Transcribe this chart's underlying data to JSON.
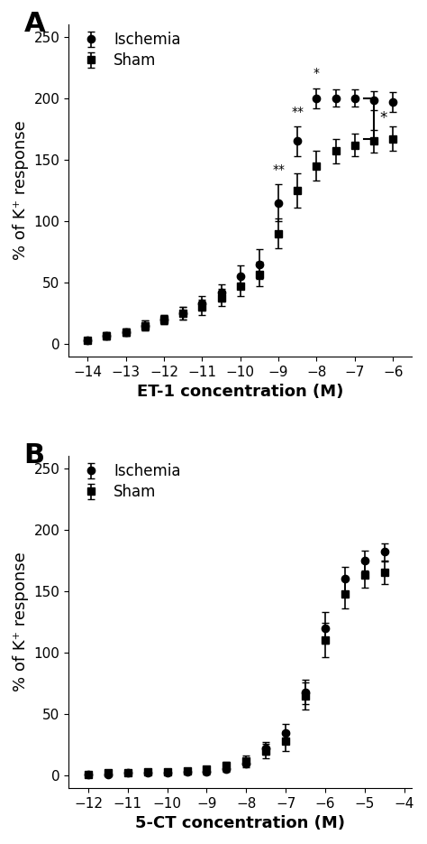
{
  "panel_A": {
    "xlabel": "ET-1 concentration (M)",
    "ylabel": "% of K⁺ response",
    "xlim": [
      -14.5,
      -5.5
    ],
    "ylim": [
      -10,
      260
    ],
    "xticks": [
      -14,
      -13,
      -12,
      -11,
      -10,
      -9,
      -8,
      -7,
      -6
    ],
    "yticks": [
      0,
      50,
      100,
      150,
      200,
      250
    ],
    "ischemia_x": [
      -14,
      -13.5,
      -13,
      -12.5,
      -12,
      -11.5,
      -11,
      -10.5,
      -10,
      -9.5,
      -9,
      -8.5,
      -8,
      -7.5,
      -7,
      -6.5,
      -6
    ],
    "ischemia_y": [
      3,
      7,
      10,
      15,
      20,
      25,
      33,
      42,
      55,
      65,
      115,
      165,
      200,
      200,
      200,
      198,
      197
    ],
    "ischemia_yerr": [
      2,
      3,
      3,
      4,
      4,
      5,
      6,
      7,
      9,
      12,
      15,
      12,
      8,
      7,
      7,
      8,
      8
    ],
    "sham_x": [
      -14,
      -13.5,
      -13,
      -12.5,
      -12,
      -11.5,
      -11,
      -10.5,
      -10,
      -9.5,
      -9,
      -8.5,
      -8,
      -7.5,
      -7,
      -6.5,
      -6
    ],
    "sham_y": [
      3,
      7,
      10,
      15,
      20,
      25,
      30,
      38,
      47,
      57,
      90,
      125,
      145,
      157,
      162,
      165,
      167
    ],
    "sham_yerr": [
      2,
      3,
      3,
      4,
      4,
      5,
      6,
      7,
      8,
      10,
      12,
      14,
      12,
      10,
      9,
      9,
      10
    ],
    "star_positions": [
      [
        -9,
        "**"
      ],
      [
        -8.5,
        "**"
      ],
      [
        -8,
        "*"
      ]
    ],
    "bracket_x1": -7.3,
    "bracket_x2": -6.3,
    "bracket_y_isch": 200,
    "bracket_y_sham": 167,
    "bracket_label": "*"
  },
  "panel_B": {
    "xlabel": "5-CT concentration (M)",
    "ylabel": "% of K⁺ response",
    "xlim": [
      -12.5,
      -3.8
    ],
    "ylim": [
      -10,
      260
    ],
    "xticks": [
      -12,
      -11,
      -10,
      -9,
      -8,
      -7,
      -6,
      -5,
      -4
    ],
    "yticks": [
      0,
      50,
      100,
      150,
      200,
      250
    ],
    "ischemia_x": [
      -12,
      -11.5,
      -11,
      -10.5,
      -10,
      -9.5,
      -9,
      -8.5,
      -8,
      -7.5,
      -7,
      -6.5,
      -6,
      -5.5,
      -5,
      -4.5
    ],
    "ischemia_y": [
      1,
      1,
      2,
      2,
      2,
      3,
      3,
      5,
      10,
      22,
      35,
      68,
      120,
      160,
      175,
      182
    ],
    "ischemia_yerr": [
      1,
      1,
      1,
      1,
      1,
      1,
      2,
      2,
      3,
      5,
      7,
      10,
      13,
      10,
      8,
      7
    ],
    "sham_x": [
      -12,
      -11.5,
      -11,
      -10.5,
      -10,
      -9.5,
      -9,
      -8.5,
      -8,
      -7.5,
      -7,
      -6.5,
      -6,
      -5.5,
      -5,
      -4.5
    ],
    "sham_y": [
      1,
      2,
      2,
      3,
      3,
      4,
      5,
      8,
      12,
      20,
      28,
      65,
      110,
      148,
      163,
      165
    ],
    "sham_yerr": [
      1,
      1,
      1,
      1,
      2,
      2,
      2,
      3,
      4,
      6,
      8,
      11,
      14,
      12,
      10,
      9
    ]
  },
  "panel_label_fontsize": 22,
  "legend_fontsize": 12,
  "axis_label_fontsize": 13,
  "tick_fontsize": 11,
  "line_color": "#000000",
  "marker_circle": "o",
  "marker_square": "s",
  "markersize": 6,
  "linewidth": 1.6,
  "capsize": 3,
  "elinewidth": 1.2,
  "markerfacecolor": "#000000",
  "markeredgecolor": "#000000"
}
